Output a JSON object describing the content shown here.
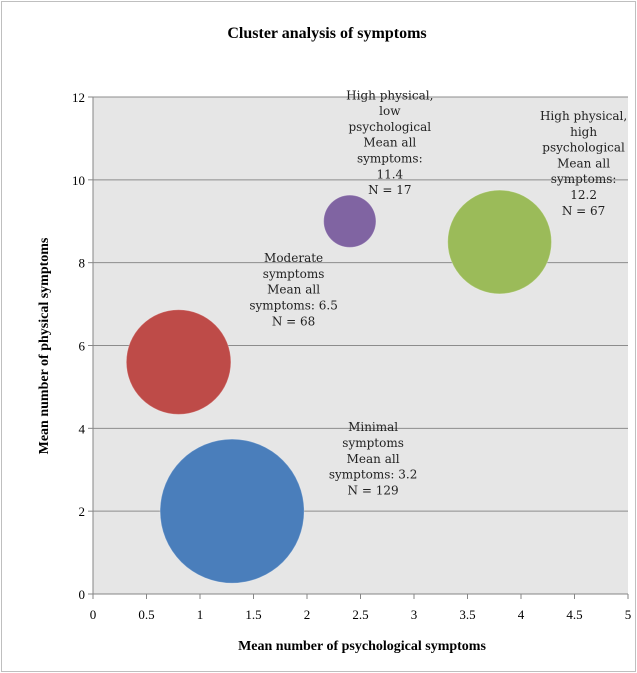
{
  "chart_data": {
    "type": "bubble",
    "title": "Cluster analysis of symptoms",
    "xlabel": "Mean number of psychological  symptoms",
    "ylabel": "Mean  number of physical symptoms",
    "xlim": [
      0,
      5
    ],
    "ylim": [
      0,
      12
    ],
    "x_ticks": [
      "0",
      "0.5",
      "1",
      "1.5",
      "2",
      "2.5",
      "3",
      "3.5",
      "4",
      "4.5",
      "5"
    ],
    "y_ticks": [
      "0",
      "2",
      "4",
      "6",
      "8",
      "10",
      "12"
    ],
    "grid": "horizontal",
    "plot_background": "#e6e6e6",
    "points": [
      {
        "x": 1.3,
        "y": 2.0,
        "n": 129,
        "mean_all": 3.2,
        "color": "#4a7ebb",
        "label_lines": [
          "Minimal",
          "symptoms",
          "Mean all",
          "symptoms: 3.2",
          "N = 129"
        ]
      },
      {
        "x": 0.8,
        "y": 5.6,
        "n": 68,
        "mean_all": 6.5,
        "color": "#be4b48",
        "label_lines": [
          "Moderate",
          "symptoms",
          "Mean all",
          "symptoms: 6.5",
          "N = 68"
        ]
      },
      {
        "x": 2.4,
        "y": 9.0,
        "n": 17,
        "mean_all": 11.4,
        "color": "#8064a2",
        "label_lines": [
          "High physical,",
          "low",
          "psychological",
          "Mean all",
          "symptoms:",
          "11.4",
          "N = 17"
        ]
      },
      {
        "x": 3.8,
        "y": 8.5,
        "n": 67,
        "mean_all": 12.2,
        "color": "#9bbb59",
        "label_lines": [
          "High physical,",
          "high",
          "psychological",
          "Mean all",
          "symptoms:",
          "12.2",
          "N = 67"
        ]
      }
    ]
  }
}
